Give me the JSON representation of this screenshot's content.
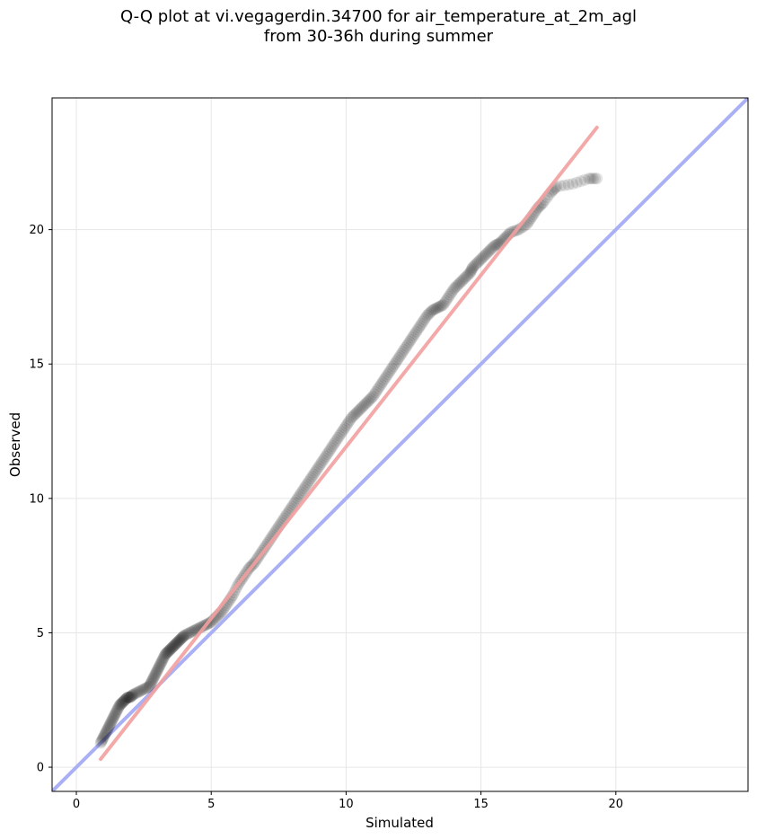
{
  "chart_data": {
    "type": "scatter",
    "title": [
      "Q-Q plot at vi.vegagerdin.34700 for air_temperature_at_2m_agl",
      "from 30-36h during summer"
    ],
    "xlabel": "Simulated",
    "ylabel": "Observed",
    "xlim": [
      -0.9,
      24.9
    ],
    "ylim": [
      -0.9,
      24.9
    ],
    "xticks": [
      0,
      5,
      10,
      15,
      20
    ],
    "yticks": [
      0,
      5,
      10,
      15,
      20
    ],
    "grid": true,
    "quantile_points": {
      "x": [
        0.9,
        1.0,
        1.1,
        1.2,
        1.3,
        1.4,
        1.5,
        1.6,
        1.7,
        1.8,
        1.9,
        2.0,
        2.1,
        2.3,
        2.5,
        2.7,
        2.8,
        2.9,
        3.0,
        3.1,
        3.2,
        3.3,
        3.4,
        3.5,
        3.6,
        3.7,
        3.8,
        3.9,
        4.0,
        4.2,
        4.4,
        4.6,
        4.8,
        5.0,
        5.2,
        5.4,
        5.6,
        5.8,
        6.0,
        6.2,
        6.4,
        6.6,
        6.8,
        7.0,
        7.2,
        7.4,
        7.6,
        7.8,
        8.0,
        8.2,
        8.4,
        8.6,
        8.8,
        9.0,
        9.2,
        9.4,
        9.6,
        9.8,
        10.0,
        10.2,
        10.4,
        10.6,
        10.8,
        11.0,
        11.2,
        11.4,
        11.6,
        11.8,
        12.0,
        12.2,
        12.4,
        12.6,
        12.8,
        13.0,
        13.2,
        13.4,
        13.6,
        13.8,
        14.0,
        14.2,
        14.4,
        14.6,
        14.7,
        14.9,
        15.1,
        15.3,
        15.5,
        15.7,
        15.9,
        16.1,
        16.4,
        16.7,
        16.9,
        17.1,
        17.3,
        17.6,
        17.8,
        18.4,
        19.0,
        19.3
      ],
      "y": [
        0.9,
        1.1,
        1.3,
        1.5,
        1.7,
        1.9,
        2.1,
        2.3,
        2.4,
        2.5,
        2.6,
        2.6,
        2.7,
        2.8,
        2.9,
        3.0,
        3.2,
        3.4,
        3.6,
        3.8,
        4.0,
        4.2,
        4.3,
        4.4,
        4.5,
        4.6,
        4.7,
        4.8,
        4.9,
        5.0,
        5.1,
        5.2,
        5.3,
        5.4,
        5.6,
        5.8,
        6.1,
        6.4,
        6.8,
        7.1,
        7.4,
        7.6,
        7.9,
        8.2,
        8.5,
        8.8,
        9.1,
        9.4,
        9.7,
        10.0,
        10.3,
        10.6,
        10.9,
        11.2,
        11.5,
        11.8,
        12.1,
        12.4,
        12.7,
        13.0,
        13.2,
        13.4,
        13.6,
        13.8,
        14.1,
        14.4,
        14.7,
        15.0,
        15.3,
        15.6,
        15.9,
        16.2,
        16.5,
        16.8,
        17.0,
        17.1,
        17.2,
        17.5,
        17.8,
        18.0,
        18.2,
        18.4,
        18.6,
        18.8,
        19.0,
        19.2,
        19.4,
        19.5,
        19.7,
        19.9,
        20.0,
        20.2,
        20.5,
        20.8,
        21.0,
        21.4,
        21.6,
        21.7,
        21.9,
        21.9
      ]
    },
    "fit_line": {
      "x": [
        0.9,
        19.3
      ],
      "y": [
        0.3,
        23.8
      ],
      "color": "#f3a0a0"
    },
    "identity_line": {
      "x": [
        -0.9,
        24.9
      ],
      "y": [
        -0.9,
        24.9
      ],
      "color": "#aab0f5"
    },
    "point_color": "#000000"
  }
}
